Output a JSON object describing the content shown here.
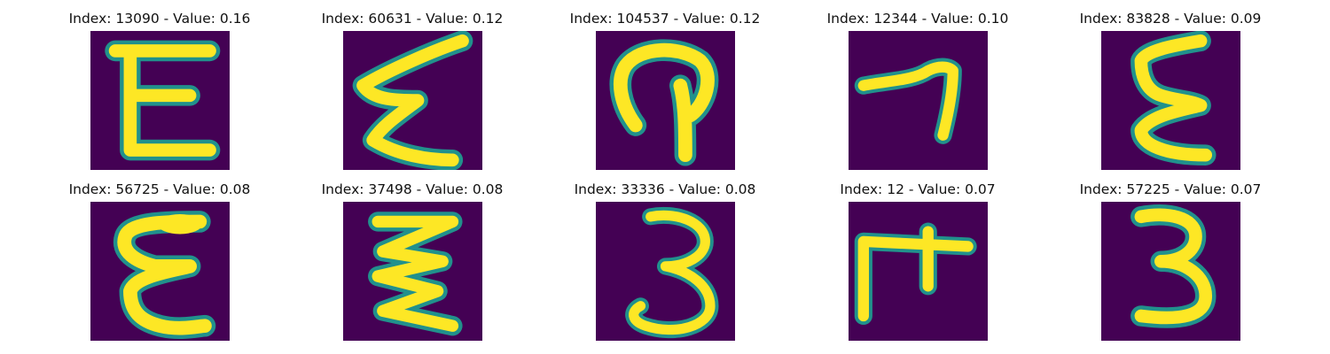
{
  "panels": [
    {
      "index": "13090",
      "value": "0.16",
      "glyph": "E-shape"
    },
    {
      "index": "60631",
      "value": "0.12",
      "glyph": "E-shape"
    },
    {
      "index": "104537",
      "value": "0.12",
      "glyph": "hook-shape"
    },
    {
      "index": "12344",
      "value": "0.10",
      "glyph": "seven-shape"
    },
    {
      "index": "83828",
      "value": "0.09",
      "glyph": "E-shape"
    },
    {
      "index": "56725",
      "value": "0.08",
      "glyph": "E-shape"
    },
    {
      "index": "37498",
      "value": "0.08",
      "glyph": "zigzag-shape"
    },
    {
      "index": "33336",
      "value": "0.08",
      "glyph": "three-shape"
    },
    {
      "index": "12",
      "value": "0.07",
      "glyph": "F-shape"
    },
    {
      "index": "57225",
      "value": "0.07",
      "glyph": "three-shape"
    }
  ],
  "colors": {
    "background": "#440154",
    "stroke_edge": "#21918c",
    "stroke_core": "#fde725"
  }
}
